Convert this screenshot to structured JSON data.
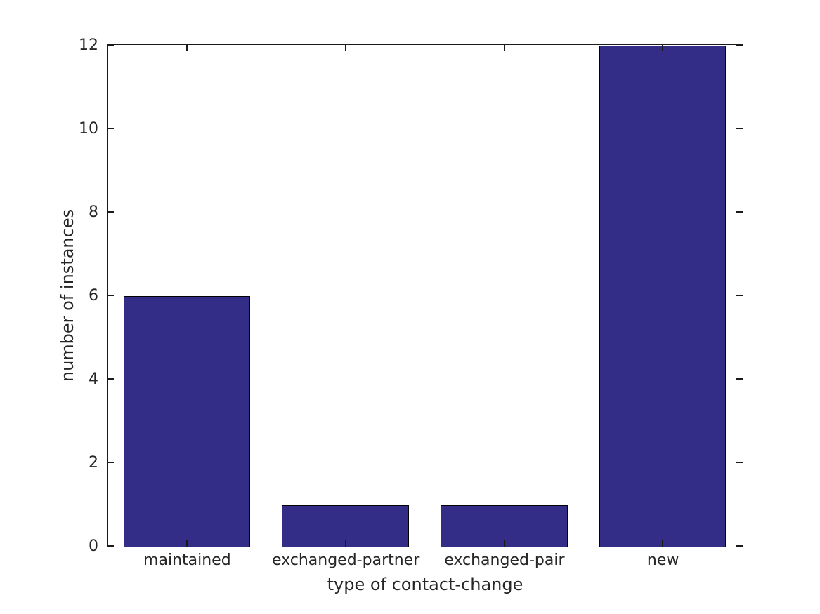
{
  "figure": {
    "background": "#ffffff",
    "text_color": "#262626",
    "axis_color": "#1a1a1a"
  },
  "chart_data": {
    "type": "bar",
    "categories": [
      "maintained",
      "exchanged-partner",
      "exchanged-pair",
      "new"
    ],
    "values": [
      6,
      1,
      1,
      12
    ],
    "title": "",
    "xlabel": "type of contact-change",
    "ylabel": "number of instances",
    "ylim": [
      0,
      12
    ],
    "yticks": [
      0,
      2,
      4,
      6,
      8,
      10,
      12
    ],
    "bar_width_fraction": 0.8,
    "bar_color": "#342d88",
    "bar_edge_color": "#000000",
    "grid": false,
    "legend_position": "none",
    "tick_style": "inward-mirrored-box"
  }
}
